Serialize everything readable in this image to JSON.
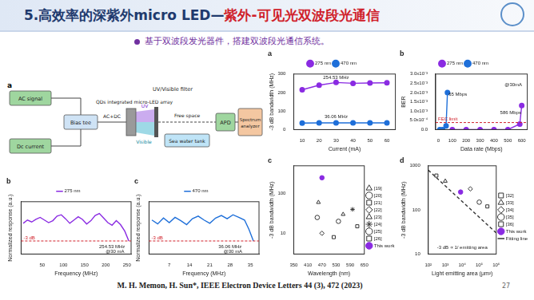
{
  "header": {
    "title_main": "5.高效率的深紫外micro LED—",
    "title_highlight": "紫外-可见光双波段光通信",
    "bullet": "基于双波段发光器件，搭建双波段光通信系统。"
  },
  "diagram": {
    "panel": "a",
    "labels": {
      "ac": "AC signal",
      "dc": "Dc current",
      "bias": "Bias tee",
      "acdc": "AC+DC",
      "led": "QDs integrated micro-LED array",
      "uv": "UV",
      "vis": "Visible",
      "filter": "UV/Visible filter",
      "free": "Free space",
      "tank": "Sea water tank",
      "apd": "APD",
      "sa": "Spectrum analyzer"
    }
  },
  "chart_data": [
    {
      "type": "line",
      "title": "b",
      "x_label": "Frequency (MHz)",
      "y_label": "Normalized response (a.u.)",
      "xlim": [
        0,
        260
      ],
      "xticks": [
        50,
        100,
        150,
        200,
        250
      ],
      "ylim": [
        -5,
        3
      ],
      "tick_labels": "x",
      "grid": false,
      "legend": "top",
      "series": [
        {
          "name": "275 nm",
          "color": "#8a2be2",
          "type": "line",
          "marker": "none",
          "line_style": "solid",
          "x": [
            5,
            15,
            25,
            35,
            45,
            55,
            65,
            75,
            85,
            95,
            105,
            115,
            125,
            135,
            145,
            155,
            165,
            175,
            185,
            195,
            205,
            215,
            225,
            235,
            245,
            254.53
          ],
          "values": [
            -0.3,
            0.2,
            -0.1,
            0.3,
            0.6,
            0.2,
            -0.2,
            0.1,
            0.8,
            1.0,
            0.4,
            -0.3,
            0.2,
            0.7,
            0.3,
            -0.4,
            0.1,
            0.9,
            1.2,
            0.5,
            -0.2,
            -0.6,
            0.1,
            -0.5,
            -1.5,
            -3
          ]
        }
      ],
      "reference_lines": [
        {
          "value": -3,
          "label": "-3 dB"
        }
      ],
      "annotations": [
        {
          "text": "254.53 MHz",
          "x": 215,
          "y": -3.9
        },
        {
          "text": "@30 mA",
          "x": 222,
          "y": -4.6
        }
      ]
    },
    {
      "type": "line",
      "title": "c",
      "x_label": "Frequency (MHz)",
      "y_label": "Normalized response (a.u.)",
      "xlim": [
        0,
        38
      ],
      "xticks": [
        7,
        14,
        21,
        28,
        35
      ],
      "ylim": [
        -5,
        3
      ],
      "tick_labels": "x",
      "grid": false,
      "legend": "top",
      "series": [
        {
          "name": "470 nm",
          "color": "#1e6fd9",
          "type": "line",
          "marker": "none",
          "line_style": "solid",
          "x": [
            1,
            3,
            5,
            7,
            9,
            11,
            13,
            15,
            17,
            19,
            21,
            23,
            25,
            27,
            29,
            31,
            33,
            34.5,
            36.06
          ],
          "values": [
            0.2,
            -0.4,
            0.5,
            -0.2,
            0.6,
            0.1,
            -0.5,
            0.4,
            0.8,
            0.2,
            -0.3,
            0.5,
            0.9,
            0.4,
            1.0,
            0.6,
            0.2,
            -1.2,
            -3
          ]
        }
      ],
      "reference_lines": [
        {
          "value": -3,
          "label": "-3 dB"
        }
      ],
      "annotations": [
        {
          "text": "36.06 MHz",
          "x": 28,
          "y": -3.9
        },
        {
          "text": "@30 mA",
          "x": 29,
          "y": -4.6
        }
      ]
    },
    {
      "type": "line",
      "title": "a",
      "x_label": "Current (mA)",
      "y_label": "-3 dB bandwidth (MHz)",
      "xlim": [
        5,
        65
      ],
      "xticks": [
        10,
        20,
        30,
        40,
        50,
        60
      ],
      "ylim": [
        0,
        300
      ],
      "yticks": [
        0,
        100,
        200,
        300
      ],
      "grid": false,
      "legend": "top",
      "series": [
        {
          "name": "275 nm",
          "color": "#8a2be2",
          "type": "line",
          "marker": "circle",
          "line_style": "solid",
          "x": [
            10,
            20,
            30,
            40,
            50,
            60
          ],
          "values": [
            215,
            240,
            254.53,
            250,
            252,
            253
          ]
        },
        {
          "name": "470 nm",
          "color": "#1e6fd9",
          "type": "line",
          "marker": "circle",
          "line_style": "solid",
          "x": [
            10,
            20,
            30,
            40,
            50,
            60
          ],
          "values": [
            35,
            36,
            36.06,
            36,
            36,
            36
          ]
        }
      ],
      "annotations": [
        {
          "text": "254.53 MHz",
          "x": 30,
          "y": 280
        },
        {
          "text": "36.06 MHz",
          "x": 30,
          "y": 70
        }
      ]
    },
    {
      "type": "line",
      "title": "b",
      "x_label": "Data rate (Mbps)",
      "y_label": "BER",
      "xlim": [
        -20,
        640
      ],
      "xticks": [
        0,
        100,
        200,
        300,
        400,
        500,
        600
      ],
      "ylim": [
        0,
        0.003
      ],
      "yticks": [
        {
          "value": 0,
          "label": "0.0"
        },
        {
          "value": 0.0005,
          "label": "5.0x10⁻⁴"
        },
        {
          "value": 0.001,
          "label": "1.0x10⁻³"
        },
        {
          "value": 0.0015,
          "label": "1.5x10⁻³"
        },
        {
          "value": 0.002,
          "label": "2.0x10⁻³"
        },
        {
          "value": 0.0025,
          "label": "2.5x10⁻³"
        },
        {
          "value": 0.003,
          "label": "3.0x10⁻³"
        }
      ],
      "grid": false,
      "legend": "top",
      "series": [
        {
          "name": "275 nm",
          "color": "#8a2be2",
          "type": "line",
          "marker": "circle",
          "line_style": "solid",
          "x": [
            100,
            200,
            300,
            400,
            500,
            586,
            600
          ],
          "values": [
            0,
            0,
            0,
            0,
            0,
            0.0003,
            0.0013
          ]
        },
        {
          "name": "470 nm",
          "color": "#1e6fd9",
          "type": "line",
          "marker": "circle",
          "line_style": "solid",
          "x": [
            10,
            30,
            55,
            65
          ],
          "values": [
            0,
            0,
            0.0002,
            0.002
          ]
        }
      ],
      "reference_lines": [
        {
          "value": 0.00038,
          "label": "FEC limit"
        }
      ],
      "annotations": [
        {
          "text": "65 Mbps",
          "x": 140,
          "y": 0.0019
        },
        {
          "text": "586 Mbps",
          "x": 520,
          "y": 0.0009
        },
        {
          "text": "@30mA",
          "x": 540,
          "y": 0.0024
        }
      ]
    },
    {
      "type": "scatter",
      "title": "c",
      "x_label": "Wavelength (nm)",
      "y_label": "-3 dB bandwidth (MHz)",
      "log": "y",
      "xlim": [
        350,
        650
      ],
      "xticks": [
        350,
        410,
        470,
        530,
        590,
        650
      ],
      "ylim": [
        3,
        500
      ],
      "yticks": [
        10,
        100
      ],
      "grid": false,
      "legend": "right",
      "series": [
        {
          "name": "[19]",
          "color": "#333333",
          "marker": "triangle-open",
          "x": [
            455
          ],
          "values": [
            60
          ]
        },
        {
          "name": "[20]",
          "color": "#333333",
          "marker": "circle-open",
          "x": [
            540
          ],
          "values": [
            20
          ]
        },
        {
          "name": "[21]",
          "color": "#333333",
          "marker": "square-open",
          "x": [
            620
          ],
          "values": [
            15
          ]
        },
        {
          "name": "[22]",
          "color": "#333333",
          "marker": "diamond-open",
          "x": [
            470
          ],
          "values": [
            10
          ]
        },
        {
          "name": "[23]",
          "color": "#333333",
          "marker": "triangle-open",
          "x": [
            560
          ],
          "values": [
            30
          ]
        },
        {
          "name": "[24]",
          "color": "#333333",
          "marker": "star",
          "x": [
            600
          ],
          "values": [
            40
          ]
        },
        {
          "name": "[25]",
          "color": "#333333",
          "marker": "circle-open",
          "x": [
            450
          ],
          "values": [
            25
          ]
        },
        {
          "name": "[26]",
          "color": "#333333",
          "marker": "square-open",
          "x": [
            520
          ],
          "values": [
            8
          ]
        },
        {
          "name": "This work",
          "color": "#8a2be2",
          "marker": "circle",
          "x": [
            470
          ],
          "values": [
            250
          ]
        }
      ]
    },
    {
      "type": "scatter",
      "title": "d",
      "x_label": "Light emitting area (μm²)",
      "y_label": "-3 dB bandwidth (MHz)",
      "log": true,
      "xlim": [
        100,
        1000000
      ],
      "xticks": [
        {
          "value": 100,
          "label": "10²"
        },
        {
          "value": 1000,
          "label": "10³"
        },
        {
          "value": 10000,
          "label": "10⁴"
        },
        {
          "value": 100000,
          "label": "10⁵"
        },
        {
          "value": 1000000,
          "label": "10⁶"
        }
      ],
      "ylim": [
        10,
        1000
      ],
      "yticks": [
        10,
        100,
        1000
      ],
      "grid": false,
      "legend": "right",
      "series": [
        {
          "name": "[32]",
          "color": "#333333",
          "marker": "square-open",
          "x": [
            300
          ],
          "values": [
            600
          ]
        },
        {
          "name": "[33]",
          "color": "#333333",
          "marker": "triangle-open",
          "x": [
            1000
          ],
          "values": [
            450
          ]
        },
        {
          "name": "[34]",
          "color": "#333333",
          "marker": "diamond-open",
          "x": [
            30000
          ],
          "values": [
            300
          ]
        },
        {
          "name": "[35]",
          "color": "#333333",
          "marker": "circle-open",
          "x": [
            100000
          ],
          "values": [
            150
          ]
        },
        {
          "name": "[36]",
          "color": "#333333",
          "marker": "square-open",
          "x": [
            300000
          ],
          "values": [
            120
          ]
        },
        {
          "name": "This work",
          "color": "#8a2be2",
          "marker": "circle",
          "x": [
            8000
          ],
          "values": [
            254.53
          ]
        },
        {
          "name": "Fitting line",
          "color": "#333333",
          "type": "line",
          "marker": "none",
          "line_style": "dashed",
          "x": [
            100,
            1000000
          ],
          "values": [
            800,
            30
          ]
        }
      ],
      "annotations": [
        {
          "text": "-3 dB ∝ 1/ emitting area",
          "x": 10000,
          "y": 14
        }
      ]
    }
  ],
  "footer": {
    "citation": "M. H. Memon, H. Sun*, IEEE Electron Device Letters 44 (3), 472 (2023)",
    "page": 27
  }
}
